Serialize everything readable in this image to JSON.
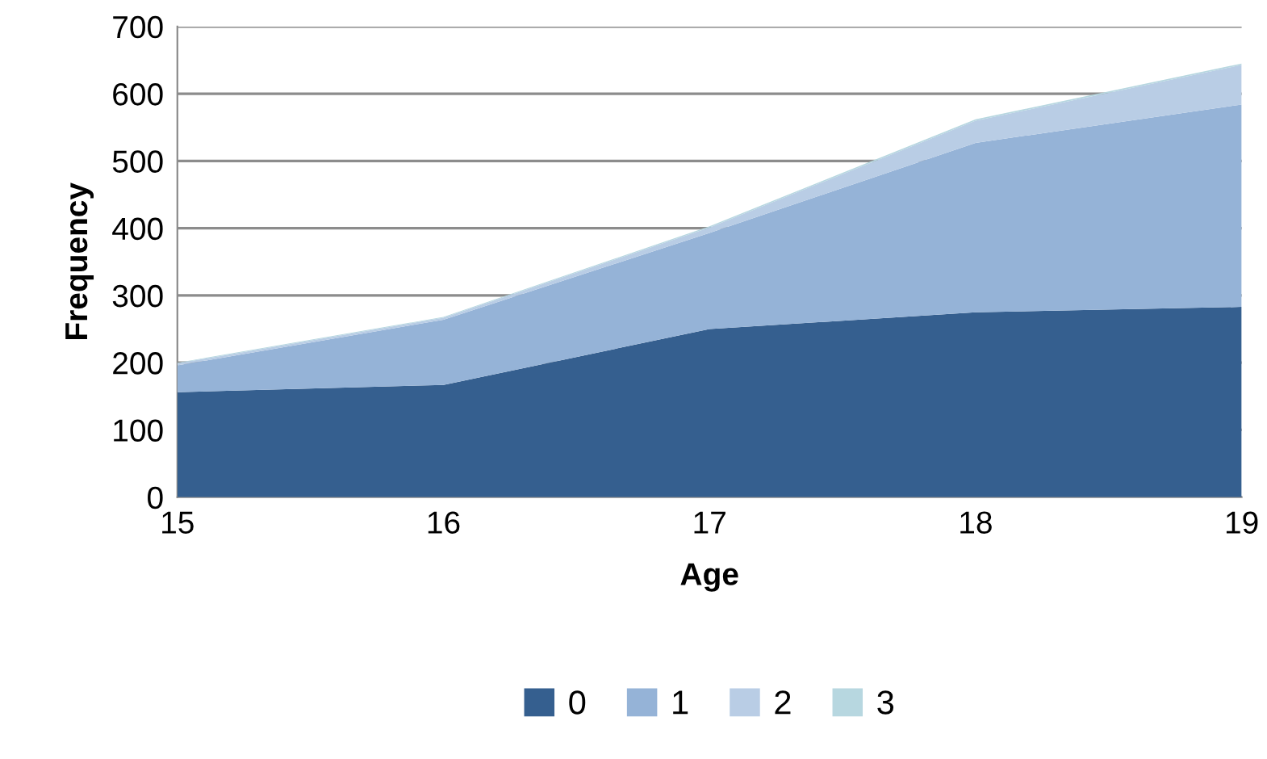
{
  "chart_data": {
    "type": "area",
    "stacked": true,
    "xlabel": "Age",
    "ylabel": "Frequency",
    "x": [
      15,
      16,
      17,
      18,
      19
    ],
    "series": [
      {
        "name": "0",
        "color": "#355f8f",
        "values": [
          156,
          167,
          250,
          275,
          283
        ]
      },
      {
        "name": "1",
        "color": "#95b3d7",
        "values": [
          40,
          97,
          143,
          252,
          301
        ]
      },
      {
        "name": "2",
        "color": "#b9cde5",
        "values": [
          3,
          3,
          8,
          33,
          59
        ]
      },
      {
        "name": "3",
        "color": "#b7d7e0",
        "values": [
          1,
          1,
          2,
          2,
          2
        ]
      }
    ],
    "xlim": [
      15,
      19
    ],
    "xticks": [
      15,
      16,
      17,
      18,
      19
    ],
    "ylim": [
      0,
      700
    ],
    "yticks": [
      0,
      100,
      200,
      300,
      400,
      500,
      600,
      700
    ],
    "grid": "y",
    "legend": "bottom"
  }
}
